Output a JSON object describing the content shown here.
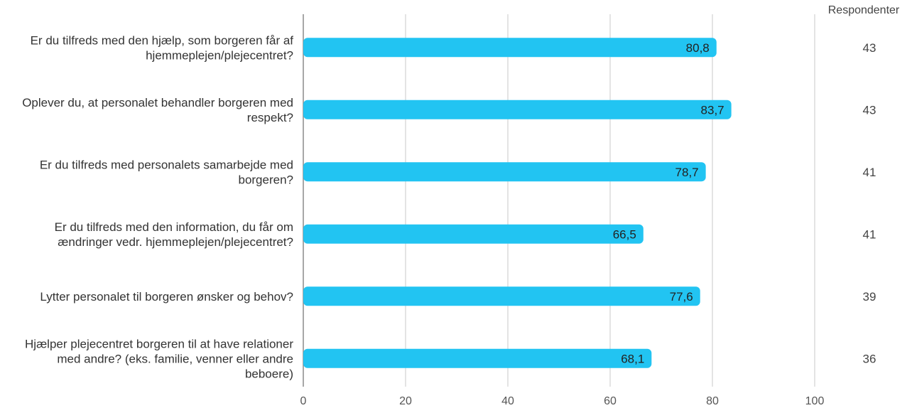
{
  "chart_data": {
    "type": "bar",
    "orientation": "horizontal",
    "categories": [
      [
        "Er du tilfreds med den hjælp, som borgeren får af",
        "hjemmeplejen/plejecentret?"
      ],
      [
        "Oplever du, at personalet behandler borgeren med",
        "respekt?"
      ],
      [
        "Er du tilfreds med personalets samarbejde med",
        "borgeren?"
      ],
      [
        "Er du tilfreds med den information, du får om",
        "ændringer vedr. hjemmeplejen/plejecentret?"
      ],
      [
        "Lytter personalet til borgeren ønsker og behov?"
      ],
      [
        "Hjælper plejecentret borgeren til at have relationer",
        "med andre? (eks. familie, venner eller andre",
        "beboere)"
      ]
    ],
    "values": [
      80.8,
      83.7,
      78.7,
      66.5,
      77.6,
      68.1
    ],
    "value_labels": [
      "80,8",
      "83,7",
      "78,7",
      "66,5",
      "77,6",
      "68,1"
    ],
    "xlim": [
      0,
      100
    ],
    "xticks": [
      0,
      20,
      40,
      60,
      80,
      100
    ],
    "grid": true,
    "bar_color": "#22c4f2",
    "respondents_header": "Respondenter",
    "respondents": [
      43,
      43,
      41,
      41,
      39,
      36
    ]
  }
}
